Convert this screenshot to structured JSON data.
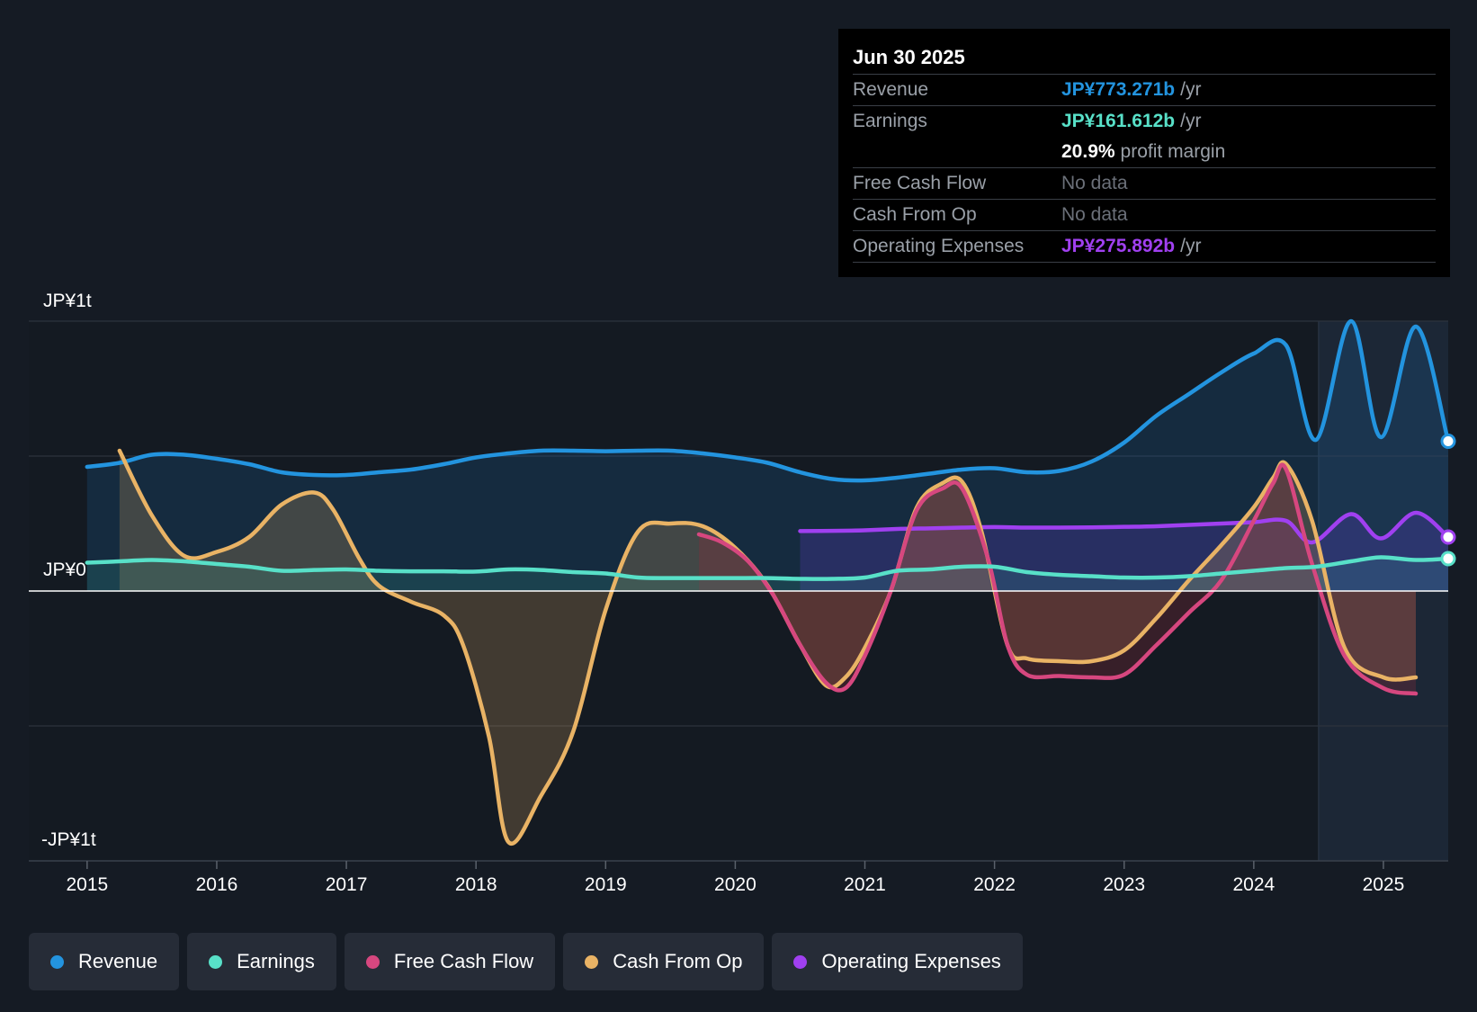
{
  "tooltip": {
    "date": "Jun 30 2025",
    "rows": {
      "revenue": {
        "label": "Revenue",
        "value": "JP¥773.271b",
        "unit": "/yr"
      },
      "earnings": {
        "label": "Earnings",
        "value": "JP¥161.612b",
        "unit": "/yr"
      },
      "margin": {
        "value": "20.9%",
        "unit": "profit margin"
      },
      "fcf": {
        "label": "Free Cash Flow",
        "value": "No data"
      },
      "cfo": {
        "label": "Cash From Op",
        "value": "No data"
      },
      "opex": {
        "label": "Operating Expenses",
        "value": "JP¥275.892b",
        "unit": "/yr"
      }
    }
  },
  "legend": {
    "revenue": "Revenue",
    "earnings": "Earnings",
    "fcf": "Free Cash Flow",
    "cfo": "Cash From Op",
    "opex": "Operating Expenses"
  },
  "colors": {
    "revenue": "#2394df",
    "earnings": "#58e0c8",
    "fcf": "#d6477f",
    "cfo": "#e9b365",
    "opex": "#a040f0",
    "background": "#151b24",
    "tooltip_bg": "#000000"
  },
  "chart_data": {
    "type": "line",
    "title": "",
    "xlabel": "",
    "ylabel": "",
    "units": "JP¥ billions",
    "ylim": [
      -1000,
      1000
    ],
    "y_tick_labels": [
      "JP¥1t",
      "JP¥0",
      "-JP¥1t"
    ],
    "x_tick_labels": [
      "2015",
      "2016",
      "2017",
      "2018",
      "2019",
      "2020",
      "2021",
      "2022",
      "2023",
      "2024",
      "2025"
    ],
    "x_range": [
      2014.55,
      2025.5
    ],
    "forecast_start": 2024.5,
    "series": [
      {
        "name": "Revenue",
        "key": "revenue",
        "x": [
          2015.0,
          2015.25,
          2015.5,
          2015.75,
          2016.0,
          2016.25,
          2016.5,
          2016.75,
          2017.0,
          2017.25,
          2017.5,
          2017.75,
          2018.0,
          2018.25,
          2018.5,
          2018.75,
          2019.0,
          2019.25,
          2019.5,
          2019.75,
          2020.0,
          2020.25,
          2020.5,
          2020.75,
          2021.0,
          2021.25,
          2021.5,
          2021.75,
          2022.0,
          2022.25,
          2022.5,
          2022.75,
          2023.0,
          2023.25,
          2023.5,
          2023.75,
          2024.0,
          2024.25,
          2024.48,
          2024.75,
          2024.98,
          2025.25,
          2025.5
        ],
        "values": [
          460,
          475,
          505,
          505,
          490,
          470,
          440,
          430,
          430,
          440,
          450,
          470,
          495,
          510,
          520,
          520,
          518,
          520,
          520,
          510,
          495,
          475,
          440,
          415,
          410,
          420,
          435,
          450,
          455,
          440,
          445,
          480,
          550,
          650,
          730,
          810,
          880,
          910,
          560,
          1000,
          570,
          980,
          555
        ]
      },
      {
        "name": "Earnings",
        "key": "earnings",
        "x": [
          2015.0,
          2015.25,
          2015.5,
          2015.75,
          2016.0,
          2016.25,
          2016.5,
          2016.75,
          2017.0,
          2017.25,
          2017.5,
          2017.75,
          2018.0,
          2018.25,
          2018.5,
          2018.75,
          2019.0,
          2019.25,
          2019.5,
          2019.75,
          2020.0,
          2020.25,
          2020.5,
          2020.75,
          2021.0,
          2021.25,
          2021.5,
          2021.75,
          2022.0,
          2022.25,
          2022.5,
          2022.75,
          2023.0,
          2023.25,
          2023.5,
          2023.75,
          2024.0,
          2024.25,
          2024.48,
          2024.75,
          2024.98,
          2025.25,
          2025.5
        ],
        "values": [
          105,
          110,
          115,
          110,
          100,
          90,
          75,
          78,
          80,
          75,
          73,
          73,
          72,
          80,
          78,
          70,
          65,
          50,
          48,
          48,
          48,
          48,
          45,
          45,
          50,
          75,
          80,
          90,
          90,
          70,
          60,
          55,
          50,
          50,
          55,
          65,
          75,
          85,
          90,
          110,
          125,
          115,
          120
        ]
      },
      {
        "name": "Free Cash Flow",
        "key": "fcf",
        "x": [
          2019.72,
          2019.9,
          2020.1,
          2020.3,
          2020.5,
          2020.7,
          2020.85,
          2021.0,
          2021.2,
          2021.4,
          2021.6,
          2021.75,
          2021.95,
          2022.1,
          2022.25,
          2022.5,
          2022.75,
          2023.0,
          2023.25,
          2023.5,
          2023.75,
          2024.0,
          2024.15,
          2024.25,
          2024.45,
          2024.7,
          2025.0,
          2025.25
        ],
        "values": [
          210,
          180,
          110,
          -20,
          -200,
          -340,
          -360,
          -240,
          0,
          300,
          380,
          380,
          120,
          -200,
          -310,
          -315,
          -320,
          -310,
          -200,
          -80,
          40,
          260,
          400,
          450,
          100,
          -240,
          -360,
          -380
        ]
      },
      {
        "name": "Cash From Op",
        "key": "cfo",
        "x": [
          2015.25,
          2015.5,
          2015.75,
          2016.0,
          2016.25,
          2016.5,
          2016.75,
          2016.9,
          2017.1,
          2017.25,
          2017.5,
          2017.75,
          2017.9,
          2018.1,
          2018.25,
          2018.5,
          2018.75,
          2019.0,
          2019.25,
          2019.5,
          2019.75,
          2020.0,
          2020.25,
          2020.5,
          2020.7,
          2020.85,
          2021.0,
          2021.2,
          2021.4,
          2021.6,
          2021.75,
          2021.9,
          2022.1,
          2022.25,
          2022.5,
          2022.75,
          2023.0,
          2023.25,
          2023.5,
          2023.75,
          2024.0,
          2024.15,
          2024.25,
          2024.45,
          2024.7,
          2025.0,
          2025.25
        ],
        "values": [
          520,
          280,
          130,
          145,
          200,
          320,
          365,
          300,
          120,
          20,
          -40,
          -90,
          -200,
          -540,
          -930,
          -760,
          -520,
          -70,
          220,
          250,
          240,
          160,
          20,
          -200,
          -350,
          -320,
          -210,
          0,
          310,
          400,
          405,
          220,
          -200,
          -250,
          -260,
          -260,
          -220,
          -100,
          40,
          170,
          310,
          420,
          470,
          260,
          -210,
          -320,
          -320
        ]
      },
      {
        "name": "Operating Expenses",
        "key": "opex",
        "x": [
          2020.5,
          2020.75,
          2021.0,
          2021.25,
          2021.5,
          2021.75,
          2022.0,
          2022.25,
          2022.5,
          2022.75,
          2023.0,
          2023.25,
          2023.5,
          2023.75,
          2024.0,
          2024.25,
          2024.45,
          2024.75,
          2024.98,
          2025.25,
          2025.5
        ],
        "values": [
          222,
          223,
          225,
          230,
          232,
          235,
          237,
          235,
          235,
          236,
          238,
          240,
          245,
          250,
          255,
          260,
          180,
          285,
          195,
          290,
          200
        ]
      }
    ]
  }
}
